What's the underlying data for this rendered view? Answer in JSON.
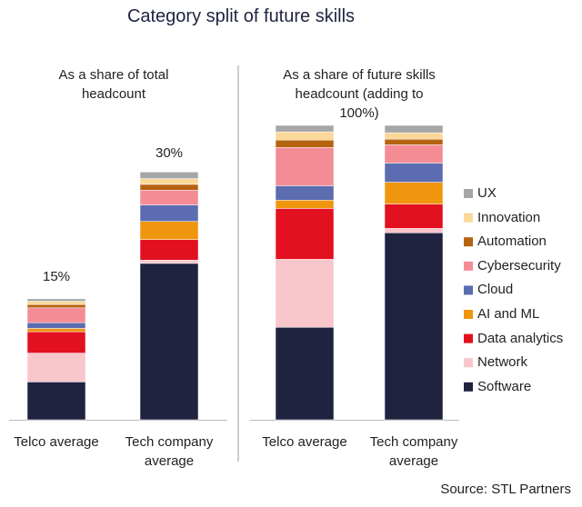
{
  "title": "Category split of future skills",
  "source": "Source: STL Partners",
  "chart_data": [
    {
      "type": "stacked_bar",
      "subtitle": "As a share of total headcount",
      "categories": [
        "Telco average",
        "Tech company average"
      ],
      "ylim": [
        0,
        34
      ],
      "totals": [
        15,
        30
      ],
      "total_labels": [
        "15%",
        "30%"
      ],
      "series": [
        {
          "name": "Software",
          "color": "#1f2340",
          "values": [
            4.6,
            19.0
          ]
        },
        {
          "name": "Network",
          "color": "#f9c6cc",
          "values": [
            3.5,
            0.4
          ]
        },
        {
          "name": "Data analytics",
          "color": "#e3101f",
          "values": [
            2.6,
            2.5
          ]
        },
        {
          "name": "AI and ML",
          "color": "#f0960e",
          "values": [
            0.4,
            2.2
          ]
        },
        {
          "name": "Cloud",
          "color": "#5b6db0",
          "values": [
            0.7,
            2.0
          ]
        },
        {
          "name": "Cybersecurity",
          "color": "#f48c96",
          "values": [
            1.8,
            1.8
          ]
        },
        {
          "name": "Automation",
          "color": "#b5630f",
          "values": [
            0.4,
            0.7
          ]
        },
        {
          "name": "Innovation",
          "color": "#fbd89a",
          "values": [
            0.4,
            0.7
          ]
        },
        {
          "name": "UX",
          "color": "#a6a6a6",
          "values": [
            0.3,
            0.8
          ]
        }
      ]
    },
    {
      "type": "stacked_bar",
      "subtitle": "As a share of future skills headcount (adding to 100%)",
      "categories": [
        "Telco average",
        "Tech company average"
      ],
      "ylim": [
        0,
        100
      ],
      "series": [
        {
          "name": "Software",
          "color": "#1f2340",
          "values": [
            31.4,
            63.5
          ]
        },
        {
          "name": "Network",
          "color": "#f9c6cc",
          "values": [
            23.1,
            1.5
          ]
        },
        {
          "name": "Data analytics",
          "color": "#e3101f",
          "values": [
            17.3,
            8.3
          ]
        },
        {
          "name": "AI and ML",
          "color": "#f0960e",
          "values": [
            2.8,
            7.4
          ]
        },
        {
          "name": "Cloud",
          "color": "#5b6db0",
          "values": [
            4.9,
            6.5
          ]
        },
        {
          "name": "Cybersecurity",
          "color": "#f48c96",
          "values": [
            13.0,
            6.2
          ]
        },
        {
          "name": "Automation",
          "color": "#b5630f",
          "values": [
            2.5,
            1.9
          ]
        },
        {
          "name": "Innovation",
          "color": "#fbd89a",
          "values": [
            2.8,
            2.2
          ]
        },
        {
          "name": "UX",
          "color": "#a6a6a6",
          "values": [
            2.2,
            2.5
          ]
        }
      ]
    }
  ]
}
